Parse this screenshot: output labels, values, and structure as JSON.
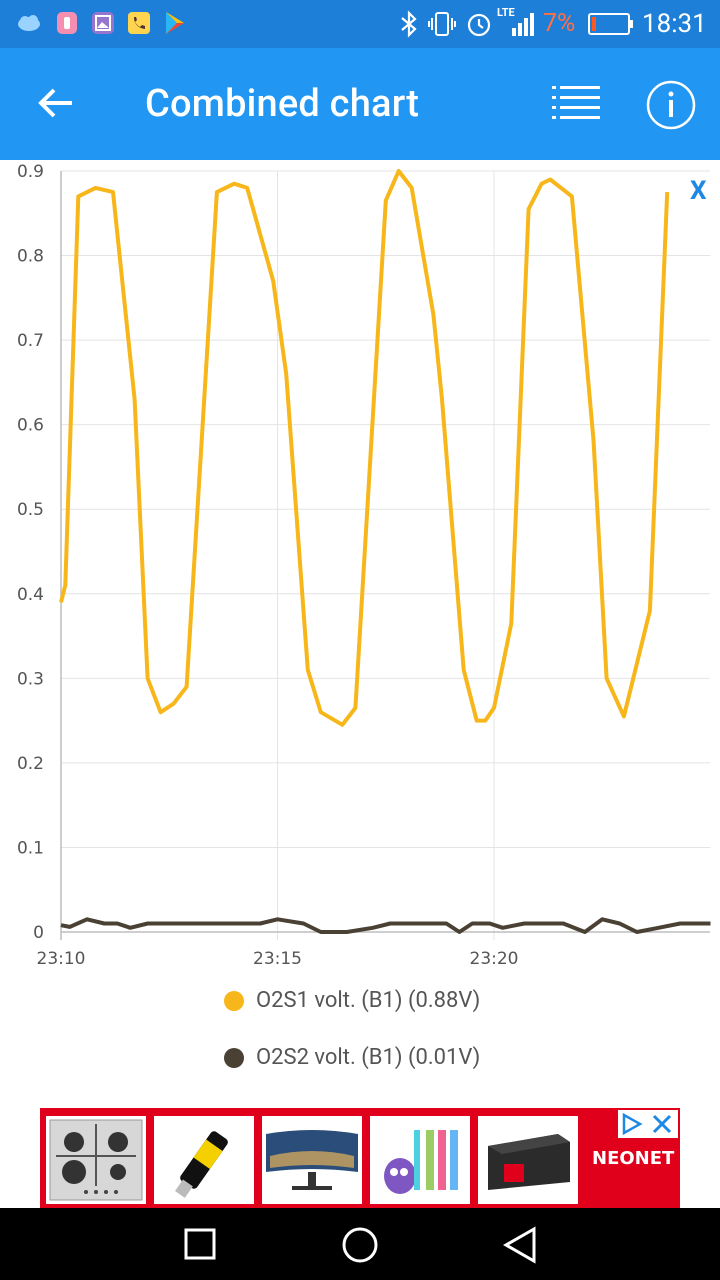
{
  "status_bar": {
    "time": "18:31",
    "battery": "7%",
    "network": "LTE"
  },
  "app_bar": {
    "title": "Combined chart"
  },
  "chart": {
    "close_label": "X",
    "y_ticks": [
      "0.9",
      "0.8",
      "0.7",
      "0.6",
      "0.5",
      "0.4",
      "0.3",
      "0.2",
      "0.1",
      "0"
    ],
    "x_ticks": [
      "23:10",
      "23:15",
      "23:20"
    ],
    "legend": [
      {
        "label": "O2S1 volt. (B1) (0.88V)",
        "color": "#f7b619"
      },
      {
        "label": "O2S2 volt. (B1) (0.01V)",
        "color": "#4a4134"
      }
    ]
  },
  "chart_data": {
    "type": "line",
    "x_ticks": [
      "23:10",
      "23:15",
      "23:20"
    ],
    "ylim": [
      0,
      0.9
    ],
    "series": [
      {
        "name": "O2S1 volt. (B1) (0.88V)",
        "color": "#f7b619",
        "points": [
          [
            0,
            0.39
          ],
          [
            0.1,
            0.41
          ],
          [
            0.4,
            0.87
          ],
          [
            0.8,
            0.88
          ],
          [
            1.2,
            0.875
          ],
          [
            1.7,
            0.63
          ],
          [
            2.0,
            0.3
          ],
          [
            2.3,
            0.26
          ],
          [
            2.6,
            0.27
          ],
          [
            2.9,
            0.29
          ],
          [
            3.6,
            0.875
          ],
          [
            4.0,
            0.885
          ],
          [
            4.3,
            0.88
          ],
          [
            4.9,
            0.77
          ],
          [
            5.2,
            0.66
          ],
          [
            5.7,
            0.31
          ],
          [
            6.0,
            0.26
          ],
          [
            6.5,
            0.245
          ],
          [
            6.8,
            0.265
          ],
          [
            7.5,
            0.865
          ],
          [
            7.8,
            0.9
          ],
          [
            8.1,
            0.88
          ],
          [
            8.6,
            0.73
          ],
          [
            8.8,
            0.63
          ],
          [
            9.3,
            0.31
          ],
          [
            9.6,
            0.25
          ],
          [
            9.8,
            0.25
          ],
          [
            10.0,
            0.265
          ],
          [
            10.4,
            0.365
          ],
          [
            10.8,
            0.855
          ],
          [
            11.1,
            0.885
          ],
          [
            11.3,
            0.89
          ],
          [
            11.8,
            0.87
          ],
          [
            12.3,
            0.58
          ],
          [
            12.6,
            0.3
          ],
          [
            13.0,
            0.255
          ],
          [
            13.6,
            0.38
          ],
          [
            14.0,
            0.875
          ]
        ]
      },
      {
        "name": "O2S2 volt. (B1) (0.01V)",
        "color": "#4a4134",
        "points": [
          [
            0,
            0.008
          ],
          [
            0.2,
            0.006
          ],
          [
            0.6,
            0.015
          ],
          [
            1.0,
            0.01
          ],
          [
            1.3,
            0.01
          ],
          [
            1.6,
            0.005
          ],
          [
            2.0,
            0.01
          ],
          [
            2.4,
            0.01
          ],
          [
            3.0,
            0.01
          ],
          [
            3.6,
            0.01
          ],
          [
            4.6,
            0.01
          ],
          [
            5.0,
            0.015
          ],
          [
            5.6,
            0.01
          ],
          [
            6.0,
            0.0
          ],
          [
            6.6,
            0.0
          ],
          [
            7.2,
            0.005
          ],
          [
            7.6,
            0.01
          ],
          [
            8.0,
            0.01
          ],
          [
            8.5,
            0.01
          ],
          [
            8.9,
            0.01
          ],
          [
            9.2,
            0.0
          ],
          [
            9.5,
            0.01
          ],
          [
            9.9,
            0.01
          ],
          [
            10.2,
            0.005
          ],
          [
            10.7,
            0.01
          ],
          [
            11.0,
            0.01
          ],
          [
            11.6,
            0.01
          ],
          [
            12.1,
            0.0
          ],
          [
            12.5,
            0.015
          ],
          [
            12.9,
            0.01
          ],
          [
            13.3,
            0.0
          ],
          [
            13.8,
            0.005
          ],
          [
            14.3,
            0.01
          ],
          [
            15.0,
            0.01
          ]
        ]
      }
    ]
  },
  "ad": {
    "brand": "NEONET"
  }
}
